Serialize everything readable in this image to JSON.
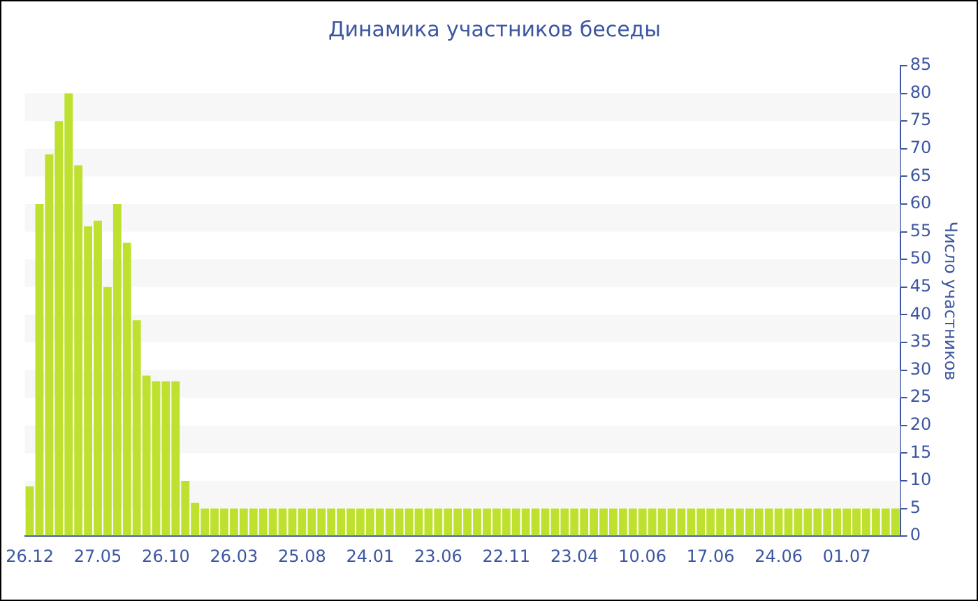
{
  "chart_data": {
    "type": "bar",
    "title": "Динамика участников беседы",
    "ylabel": "Число участников",
    "categories": [
      "26.12",
      null,
      null,
      null,
      null,
      null,
      null,
      "27.05",
      null,
      null,
      null,
      null,
      null,
      null,
      "26.10",
      null,
      null,
      null,
      null,
      null,
      null,
      "26.03",
      null,
      null,
      null,
      null,
      null,
      null,
      "25.08",
      null,
      null,
      null,
      null,
      null,
      null,
      "24.01",
      null,
      null,
      null,
      null,
      null,
      null,
      "23.06",
      null,
      null,
      null,
      null,
      null,
      null,
      "22.11",
      null,
      null,
      null,
      null,
      null,
      null,
      "23.04",
      null,
      null,
      null,
      null,
      null,
      null,
      "10.06",
      null,
      null,
      null,
      null,
      null,
      null,
      "17.06",
      null,
      null,
      null,
      null,
      null,
      null,
      "24.06",
      null,
      null,
      null,
      null,
      null,
      null,
      "01.07",
      null,
      null,
      null,
      null,
      null
    ],
    "values": [
      9,
      60,
      69,
      75,
      80,
      67,
      56,
      57,
      45,
      60,
      53,
      39,
      29,
      28,
      28,
      28,
      10,
      6,
      5,
      5,
      5,
      5,
      5,
      5,
      5,
      5,
      5,
      5,
      5,
      5,
      5,
      5,
      5,
      5,
      5,
      5,
      5,
      5,
      5,
      5,
      5,
      5,
      5,
      5,
      5,
      5,
      5,
      5,
      5,
      5,
      5,
      5,
      5,
      5,
      5,
      5,
      5,
      5,
      5,
      5,
      5,
      5,
      5,
      5,
      5,
      5,
      5,
      5,
      5,
      5,
      5,
      5,
      5,
      5,
      5,
      5,
      5,
      5,
      5,
      5,
      5,
      5,
      5,
      5,
      5,
      5,
      5,
      5,
      5,
      5
    ],
    "color": "#bde12e",
    "ylim": [
      0,
      85
    ],
    "yticks": [
      0,
      5,
      10,
      15,
      20,
      25,
      30,
      35,
      40,
      45,
      50,
      55,
      60,
      65,
      70,
      75,
      80,
      85
    ],
    "bands": [
      {
        "axis": "y",
        "from": 5,
        "to": 10,
        "color": "#f7f7f7"
      },
      {
        "axis": "y",
        "from": 15,
        "to": 20,
        "color": "#f7f7f7"
      },
      {
        "axis": "y",
        "from": 25,
        "to": 30,
        "color": "#f7f7f7"
      },
      {
        "axis": "y",
        "from": 35,
        "to": 40,
        "color": "#f7f7f7"
      },
      {
        "axis": "y",
        "from": 45,
        "to": 50,
        "color": "#f7f7f7"
      },
      {
        "axis": "y",
        "from": 55,
        "to": 60,
        "color": "#f7f7f7"
      },
      {
        "axis": "y",
        "from": 65,
        "to": 70,
        "color": "#f7f7f7"
      },
      {
        "axis": "y",
        "from": 75,
        "to": 80,
        "color": "#f7f7f7"
      }
    ]
  }
}
